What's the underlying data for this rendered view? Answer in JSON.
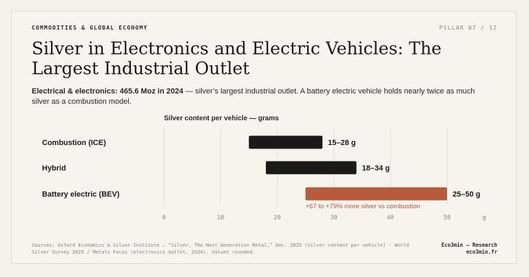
{
  "header": {
    "kicker": "COMMODITIES & GLOBAL ECONOMY",
    "pillar": "PILLAR 07 / 12"
  },
  "title": "Silver in Electronics and Electric Vehicles: The Largest Industrial Outlet",
  "subtitle": {
    "bold": "Electrical & electronics: 465.6 Moz in 2024",
    "rest": " — silver’s largest industrial outlet. A battery electric vehicle holds nearly twice as much silver as a combustion model."
  },
  "chart_data": {
    "type": "bar",
    "orientation": "horizontal-range",
    "title": "Silver content per vehicle — grams",
    "unit": "g",
    "xlim": [
      0,
      50
    ],
    "xticks": [
      0,
      10,
      20,
      30,
      40,
      50
    ],
    "grid": true,
    "categories": [
      "Combustion (ICE)",
      "Hybrid",
      "Battery electric (BEV)"
    ],
    "ranges": [
      [
        15,
        28
      ],
      [
        18,
        34
      ],
      [
        25,
        50
      ]
    ],
    "value_labels": [
      "15–28 g",
      "18–34 g",
      "25–50 g"
    ],
    "colors": [
      "#1c1a18",
      "#1c1a18",
      "#b85a3c"
    ],
    "annotation": "+67 to +79% more silver vs combustion"
  },
  "footer": {
    "sources": "Sources: Oxford Economics & Silver Institute – “Silver, The Next Generation Metal,” Dec. 2025 (silver content per vehicle) · World Silver Survey 2025 / Metals Focus (electronics outlet, 2024). Values rounded.",
    "brand_line1": "Eco3min — Research",
    "brand_line2": "eco3min.fr"
  }
}
